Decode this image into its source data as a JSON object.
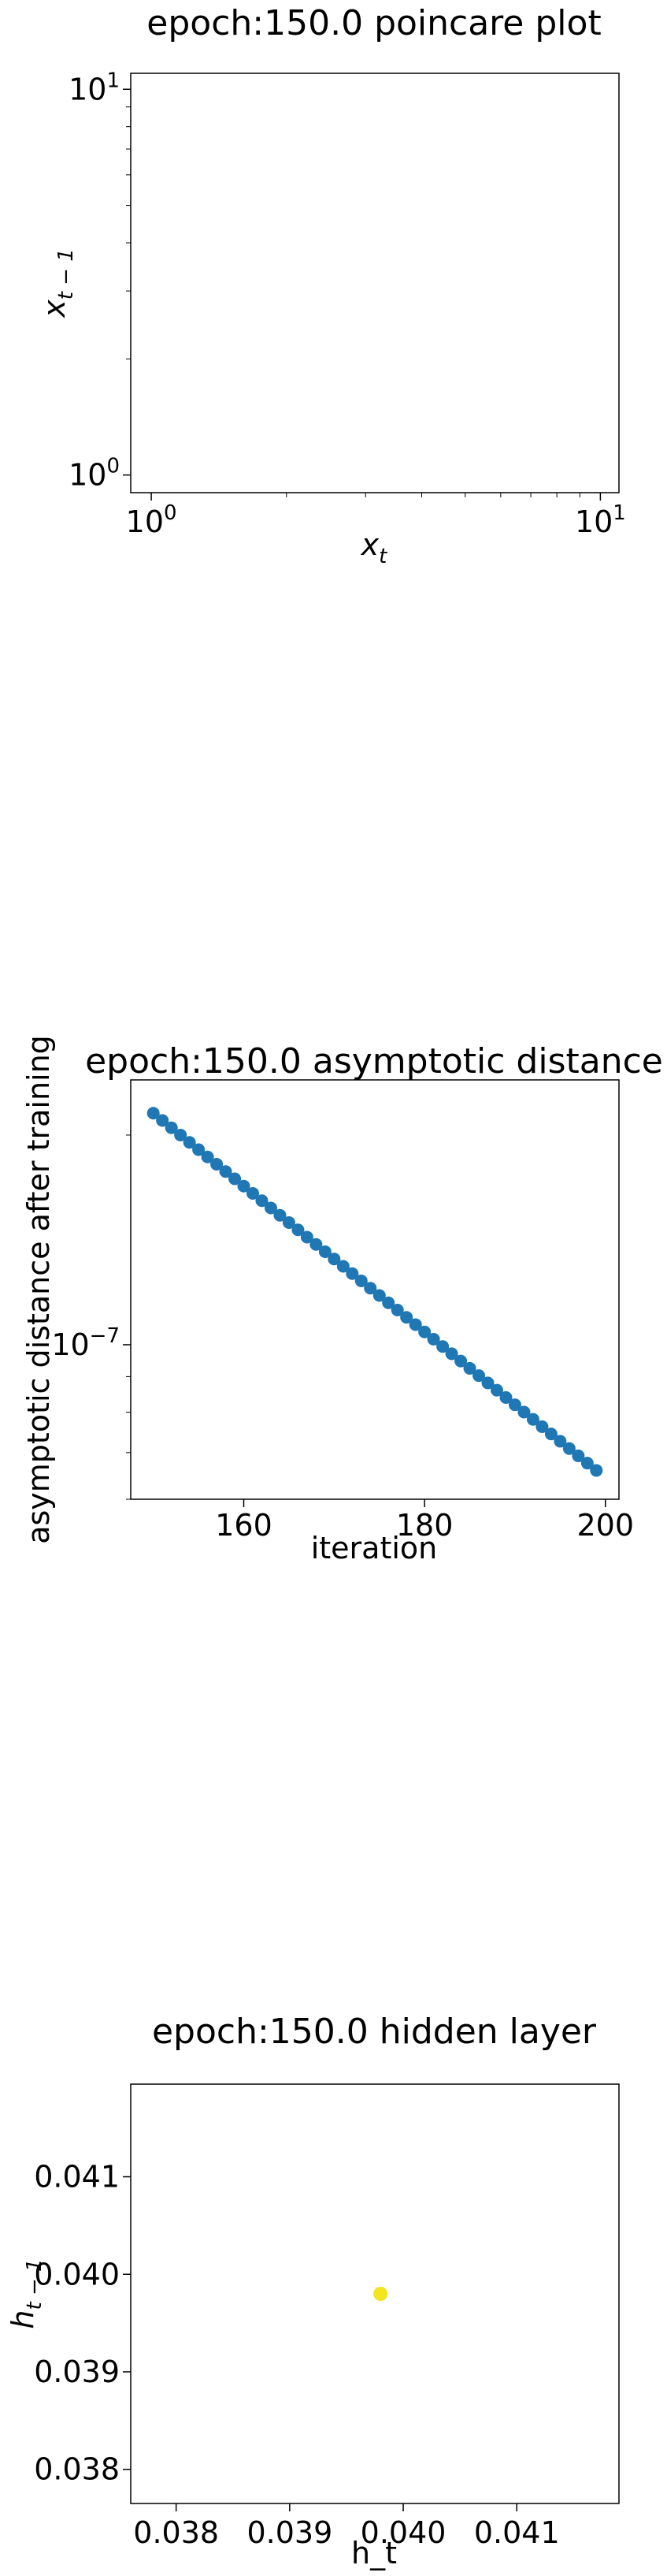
{
  "chart_data": [
    {
      "type": "scatter",
      "title": "epoch:150.0 poincare plot",
      "xlabel": "x_t",
      "ylabel": "x_{t-1}",
      "xscale": "log",
      "yscale": "log",
      "xlim": [
        0.9,
        11
      ],
      "ylim": [
        0.9,
        11
      ],
      "x_ticks": [
        1,
        10
      ],
      "y_ticks": [
        1,
        10
      ],
      "x_tick_labels": [
        "10^0",
        "10^1"
      ],
      "y_tick_labels": [
        "10^0",
        "10^1"
      ],
      "points": [],
      "grid": false
    },
    {
      "type": "scatter",
      "title": "epoch:150.0 asymptotic distance",
      "xlabel": "iteration",
      "ylabel": "asymptotic distance after training",
      "yscale": "log",
      "xlim": [
        147.5,
        201.5
      ],
      "ylim": [
        6e-08,
        2.4e-07
      ],
      "x_ticks": [
        160,
        180,
        200
      ],
      "x_tick_labels": [
        "160",
        "180",
        "200"
      ],
      "y_ticks": [
        1e-07
      ],
      "y_tick_labels": [
        "10^-7"
      ],
      "marker_color": "#1f77b4",
      "x_start": 150,
      "x_end": 199,
      "y_start": 2.15e-07,
      "y_end": 6.6e-08,
      "grid": false
    },
    {
      "type": "scatter",
      "title": "epoch:150.0 hidden layer",
      "xlabel": "h_t",
      "ylabel": "h_{t-1}",
      "xlim": [
        0.0376,
        0.0419
      ],
      "ylim": [
        0.03765,
        0.04195
      ],
      "x_ticks": [
        0.038,
        0.039,
        0.04,
        0.041
      ],
      "x_tick_labels": [
        "0.038",
        "0.039",
        "0.040",
        "0.041"
      ],
      "y_ticks": [
        0.038,
        0.039,
        0.04,
        0.041
      ],
      "y_tick_labels": [
        "0.038",
        "0.039",
        "0.040",
        "0.041"
      ],
      "points": [
        {
          "x": 0.0398,
          "y": 0.0398
        }
      ],
      "marker_color": "#f2e51d",
      "grid": false
    }
  ]
}
